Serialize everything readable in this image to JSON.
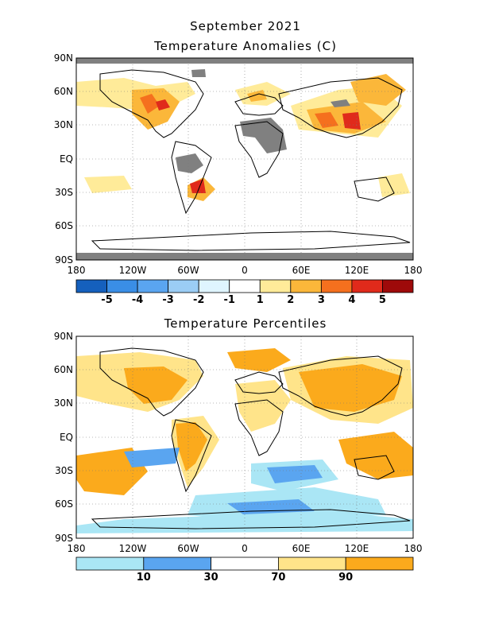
{
  "header": {
    "month_year": "September 2021",
    "anomaly_title": "Temperature Anomalies (C)",
    "percentile_title": "Temperature Percentiles"
  },
  "axes": {
    "lat_labels": [
      "90N",
      "60N",
      "30N",
      "EQ",
      "30S",
      "60S",
      "90S"
    ],
    "lon_labels": [
      "180",
      "120W",
      "60W",
      "0",
      "60E",
      "120E",
      "180"
    ]
  },
  "anomaly_colorbar": {
    "colors": [
      "#1560bd",
      "#3a8ee6",
      "#5aa5f0",
      "#9bcdf5",
      "#dff5ff",
      "#ffffff",
      "#ffeb99",
      "#fbb73a",
      "#f5701e",
      "#e02a1b",
      "#9e0a0a"
    ],
    "labels": [
      "-5",
      "-4",
      "-3",
      "-2",
      "-1",
      "1",
      "2",
      "3",
      "4",
      "5"
    ]
  },
  "percentile_colorbar": {
    "colors": [
      "#aae6f5",
      "#5aa5f0",
      "#ffffff",
      "#ffe48a",
      "#fbaa1c"
    ],
    "labels": [
      "10",
      "30",
      "70",
      "90"
    ]
  },
  "map_colors": {
    "missing": "#808080",
    "coast": "#000000"
  }
}
